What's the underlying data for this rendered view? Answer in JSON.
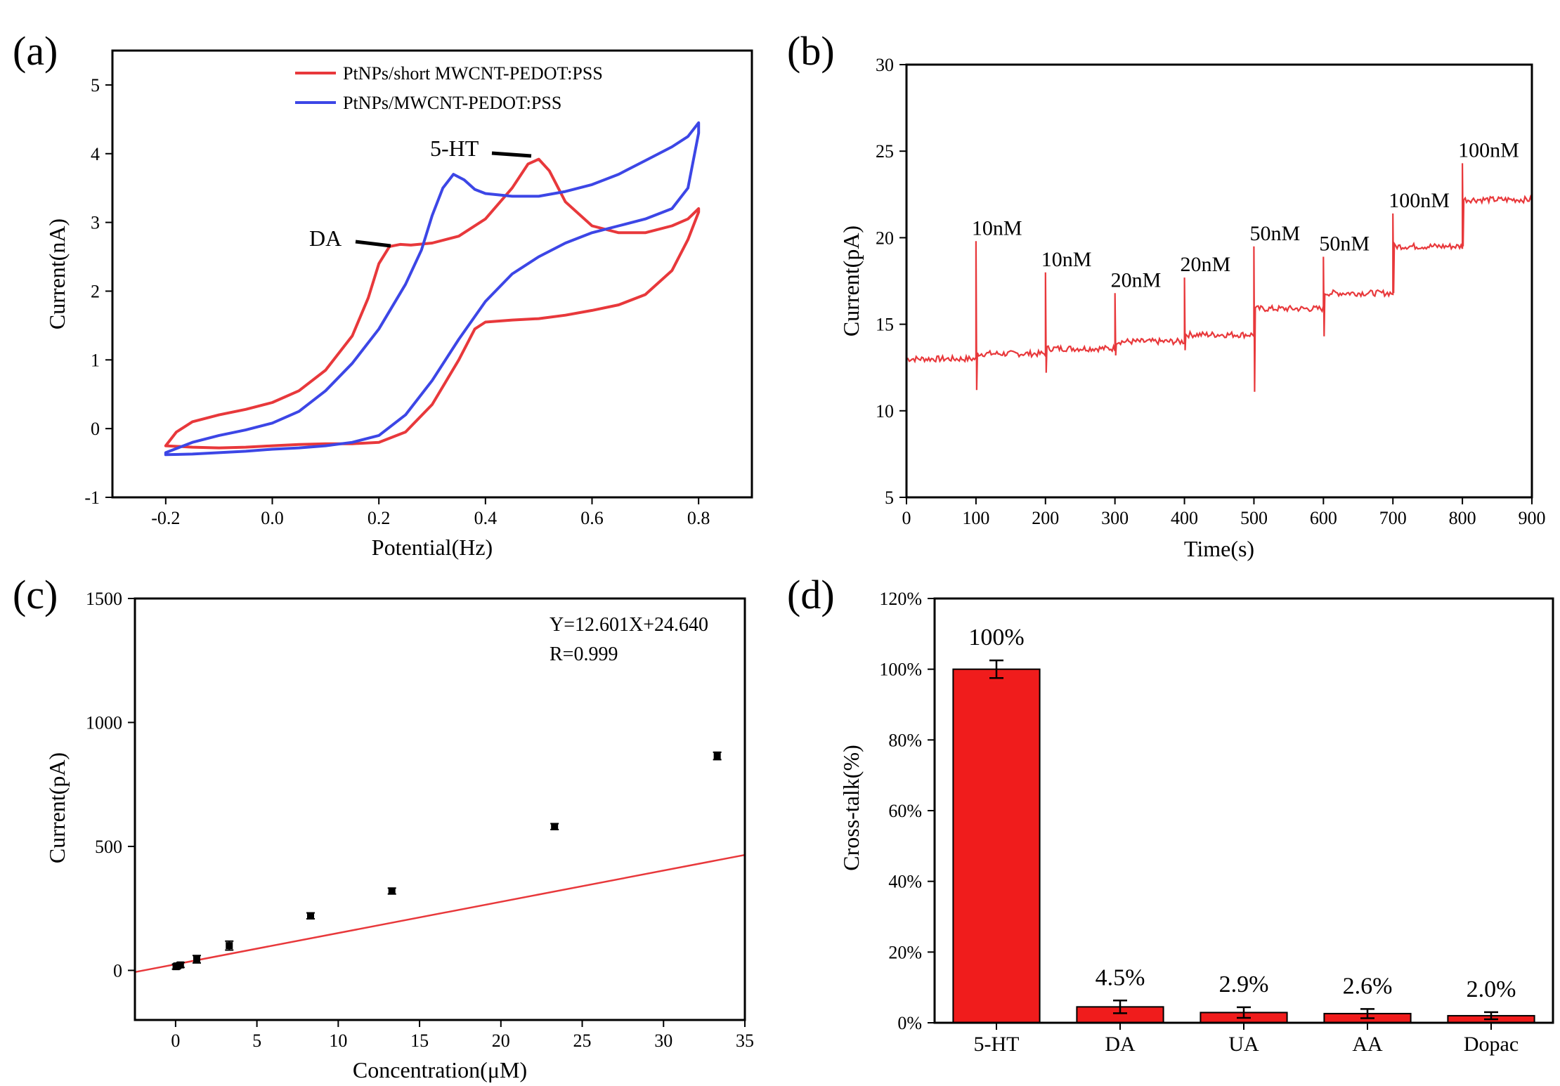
{
  "chart_data": [
    {
      "panel": "(a)",
      "type": "line",
      "xlabel": "Potential(Hz)",
      "ylabel": "Current(nA)",
      "xlim": [
        -0.3,
        0.9
      ],
      "ylim": [
        -1,
        5.5
      ],
      "xticks": [
        -0.2,
        0.0,
        0.2,
        0.4,
        0.6,
        0.8
      ],
      "xtick_labels": [
        "-0.2",
        "0.0",
        "0.2",
        "0.4",
        "0.6",
        "0.8"
      ],
      "yticks": [
        -1,
        0,
        1,
        2,
        3,
        4,
        5
      ],
      "ytick_labels": [
        "-1",
        "0",
        "1",
        "2",
        "3",
        "4",
        "5"
      ],
      "legend_position": "top-right",
      "series": [
        {
          "name": "PtNPs/short MWCNT-PEDOT:PSS",
          "color": "#e8383b",
          "x": [
            -0.2,
            -0.18,
            -0.15,
            -0.1,
            -0.05,
            0.0,
            0.05,
            0.1,
            0.15,
            0.18,
            0.2,
            0.22,
            0.24,
            0.26,
            0.3,
            0.35,
            0.4,
            0.45,
            0.48,
            0.5,
            0.52,
            0.55,
            0.6,
            0.65,
            0.7,
            0.75,
            0.78,
            0.8,
            0.8,
            0.78,
            0.75,
            0.7,
            0.65,
            0.6,
            0.55,
            0.5,
            0.45,
            0.4,
            0.38,
            0.35,
            0.3,
            0.25,
            0.2,
            0.15,
            0.1,
            0.05,
            0.0,
            -0.05,
            -0.1,
            -0.15,
            -0.2
          ],
          "y": [
            -0.25,
            -0.05,
            0.1,
            0.2,
            0.28,
            0.38,
            0.55,
            0.85,
            1.35,
            1.9,
            2.4,
            2.65,
            2.68,
            2.67,
            2.7,
            2.8,
            3.05,
            3.5,
            3.85,
            3.92,
            3.75,
            3.3,
            2.95,
            2.85,
            2.85,
            2.95,
            3.05,
            3.2,
            3.15,
            2.75,
            2.3,
            1.95,
            1.8,
            1.72,
            1.65,
            1.6,
            1.58,
            1.55,
            1.45,
            1.0,
            0.35,
            -0.05,
            -0.2,
            -0.22,
            -0.22,
            -0.23,
            -0.25,
            -0.27,
            -0.28,
            -0.27,
            -0.25
          ]
        },
        {
          "name": "PtNPs/MWCNT-PEDOT:PSS",
          "color": "#3c46e6",
          "x": [
            -0.2,
            -0.15,
            -0.1,
            -0.05,
            0.0,
            0.05,
            0.1,
            0.15,
            0.2,
            0.25,
            0.28,
            0.3,
            0.32,
            0.34,
            0.36,
            0.38,
            0.4,
            0.45,
            0.5,
            0.55,
            0.6,
            0.65,
            0.7,
            0.75,
            0.78,
            0.8,
            0.8,
            0.78,
            0.75,
            0.7,
            0.65,
            0.6,
            0.55,
            0.5,
            0.45,
            0.4,
            0.35,
            0.3,
            0.25,
            0.2,
            0.15,
            0.1,
            0.05,
            0.0,
            -0.05,
            -0.1,
            -0.15,
            -0.2
          ],
          "y": [
            -0.35,
            -0.2,
            -0.1,
            -0.02,
            0.08,
            0.25,
            0.55,
            0.95,
            1.45,
            2.1,
            2.6,
            3.1,
            3.5,
            3.7,
            3.62,
            3.48,
            3.42,
            3.38,
            3.38,
            3.45,
            3.55,
            3.7,
            3.9,
            4.1,
            4.25,
            4.45,
            4.3,
            3.5,
            3.2,
            3.05,
            2.95,
            2.85,
            2.7,
            2.5,
            2.25,
            1.85,
            1.3,
            0.7,
            0.2,
            -0.1,
            -0.2,
            -0.25,
            -0.28,
            -0.3,
            -0.33,
            -0.35,
            -0.37,
            -0.38
          ]
        }
      ],
      "annotations": [
        {
          "text": "DA",
          "x": 0.23,
          "y": 2.68
        },
        {
          "text": "5-HT",
          "x": 0.48,
          "y": 3.92
        }
      ]
    },
    {
      "panel": "(b)",
      "type": "line",
      "xlabel": "Time(s)",
      "ylabel": "Current(pA)",
      "xlim": [
        0,
        900
      ],
      "ylim": [
        5,
        30
      ],
      "xticks": [
        0,
        100,
        200,
        300,
        400,
        500,
        600,
        700,
        800,
        900
      ],
      "xtick_labels": [
        "0",
        "100",
        "200",
        "300",
        "400",
        "500",
        "600",
        "700",
        "800",
        "900"
      ],
      "yticks": [
        5,
        10,
        15,
        20,
        25,
        30
      ],
      "ytick_labels": [
        "5",
        "10",
        "15",
        "20",
        "25",
        "30"
      ],
      "series": [
        {
          "color": "#e8383b",
          "steps": [
            {
              "t": 0,
              "level": 13.0
            },
            {
              "t": 100,
              "level": 13.3,
              "spike_up": 19.8,
              "spike_down": 11.2
            },
            {
              "t": 200,
              "level": 13.6,
              "spike_up": 18.0,
              "spike_down": 12.2
            },
            {
              "t": 300,
              "level": 14.0,
              "spike_up": 16.8,
              "spike_down": 13.2
            },
            {
              "t": 400,
              "level": 14.4,
              "spike_up": 17.7,
              "spike_down": 13.5
            },
            {
              "t": 500,
              "level": 15.9,
              "spike_up": 19.5,
              "spike_down": 11.1
            },
            {
              "t": 600,
              "level": 16.8,
              "spike_up": 18.9,
              "spike_down": 14.3
            },
            {
              "t": 700,
              "level": 19.5,
              "spike_up": 21.4,
              "spike_down": 16.8
            },
            {
              "t": 800,
              "level": 22.2,
              "spike_up": 24.3,
              "spike_down": 19.5
            }
          ],
          "end_t": 900
        }
      ],
      "annotations": [
        {
          "text": "10nM",
          "x": 100,
          "y": 20.0
        },
        {
          "text": "10nM",
          "x": 200,
          "y": 18.2
        },
        {
          "text": "20nM",
          "x": 300,
          "y": 17.0
        },
        {
          "text": "20nM",
          "x": 400,
          "y": 17.9
        },
        {
          "text": "50nM",
          "x": 500,
          "y": 19.7
        },
        {
          "text": "50nM",
          "x": 600,
          "y": 19.1
        },
        {
          "text": "100nM",
          "x": 700,
          "y": 21.6
        },
        {
          "text": "100nM",
          "x": 800,
          "y": 24.5
        }
      ]
    },
    {
      "panel": "(c)",
      "type": "scatter",
      "xlabel": "Concentration(μM)",
      "ylabel": "Current(pA)",
      "xlim": [
        -2.5,
        35
      ],
      "ylim": [
        -200,
        1500
      ],
      "xticks": [
        0,
        5,
        10,
        15,
        20,
        25,
        30,
        35
      ],
      "xtick_labels": [
        "0",
        "5",
        "10",
        "15",
        "20",
        "25",
        "30",
        "35"
      ],
      "yticks": [
        0,
        500,
        1000,
        1500
      ],
      "ytick_labels": [
        "0",
        "500",
        "1000",
        "1500"
      ],
      "points": {
        "x": [
          0.03,
          0.1,
          0.3,
          1.3,
          3.3,
          8.3,
          13.3,
          23.3,
          33.3
        ],
        "y": [
          15,
          18,
          22,
          45,
          100,
          220,
          320,
          580,
          865
        ],
        "err": [
          10,
          10,
          10,
          15,
          18,
          12,
          12,
          12,
          15
        ]
      },
      "fit": {
        "slope": 12.601,
        "intercept": 24.64,
        "x_range": [
          -2.5,
          35
        ],
        "color": "#e8383b"
      },
      "annotations": [
        "Y=12.601X+24.640",
        "R=0.999"
      ]
    },
    {
      "panel": "(d)",
      "type": "bar",
      "ylabel": "Cross-talk(%)",
      "categories": [
        "5-HT",
        "DA",
        "UA",
        "AA",
        "Dopac"
      ],
      "values": [
        100,
        4.5,
        2.9,
        2.6,
        2.0
      ],
      "errors": [
        2.5,
        1.8,
        1.5,
        1.3,
        1.0
      ],
      "value_labels": [
        "100%",
        "4.5%",
        "2.9%",
        "2.6%",
        "2.0%"
      ],
      "ylim": [
        0,
        120
      ],
      "yticks": [
        0,
        20,
        40,
        60,
        80,
        100,
        120
      ],
      "ytick_labels": [
        "0%",
        "20%",
        "40%",
        "60%",
        "80%",
        "100%",
        "120%"
      ],
      "color": "#f01c1c"
    }
  ]
}
